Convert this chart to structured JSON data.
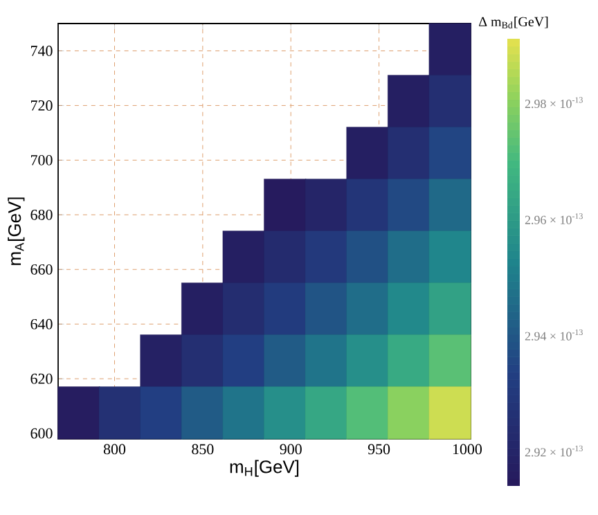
{
  "chart_data": {
    "type": "scatter",
    "xlabel": "m$_{H}$[GeV]",
    "ylabel": "m$_{A}$[GeV]",
    "clabel": "Δ m$_{Bd}$[GeV]",
    "x": [
      990.3,
      966.9,
      990.3,
      943.5,
      966.9,
      990.3,
      896.7,
      920.1,
      943.5,
      966.9,
      990.3,
      873.3,
      896.7,
      920.1,
      943.5,
      966.9,
      990.3,
      849.9,
      873.3,
      896.7,
      920.1,
      943.5,
      966.9,
      990.3,
      826.5,
      849.9,
      873.3,
      896.7,
      920.1,
      943.5,
      966.9,
      990.3,
      779.7,
      803.1,
      826.5,
      849.9,
      873.3,
      896.7,
      920.1,
      943.5,
      966.9,
      990.3
    ],
    "values": [
      740.5,
      721.5,
      721.5,
      702.5,
      702.5,
      702.5,
      683.5,
      683.5,
      683.5,
      683.5,
      683.5,
      664.5,
      664.5,
      664.5,
      664.5,
      664.5,
      664.5,
      645.5,
      645.5,
      645.5,
      645.5,
      645.5,
      645.5,
      645.5,
      626.5,
      626.5,
      626.5,
      626.5,
      626.5,
      626.5,
      626.5,
      626.5,
      607.5,
      607.5,
      607.5,
      607.5,
      607.5,
      607.5,
      607.5,
      607.5,
      607.5,
      607.5
    ],
    "cvalues": [
      2.917e-13,
      2.917e-13,
      2.925e-13,
      2.917e-13,
      2.925e-13,
      2.935e-13,
      2.915e-13,
      2.92e-13,
      2.928e-13,
      2.936e-13,
      2.945e-13,
      2.917e-13,
      2.923e-13,
      2.93e-13,
      2.938e-13,
      2.946e-13,
      2.953e-13,
      2.917e-13,
      2.924e-13,
      2.931e-13,
      2.939e-13,
      2.946e-13,
      2.954e-13,
      2.962e-13,
      2.918e-13,
      2.925e-13,
      2.933e-13,
      2.941e-13,
      2.948e-13,
      2.956e-13,
      2.965e-13,
      2.973e-13,
      2.916e-13,
      2.926e-13,
      2.933e-13,
      2.941e-13,
      2.948e-13,
      2.956e-13,
      2.964e-13,
      2.972e-13,
      2.98e-13,
      2.988e-13
    ],
    "marker": "square",
    "xlim": [
      768,
      1002
    ],
    "ylim": [
      598,
      750
    ],
    "xticks": [
      800,
      850,
      900,
      950,
      1000
    ],
    "yticks": [
      600,
      620,
      640,
      660,
      680,
      700,
      720,
      740
    ],
    "clim": [
      2.914e-13,
      2.991e-13
    ],
    "cticks": [
      {
        "value": 2.92e-13,
        "label": "2.92 × 10$^{-13}$"
      },
      {
        "value": 2.94e-13,
        "label": "2.94 × 10$^{-13}$"
      },
      {
        "value": 2.96e-13,
        "label": "2.96 × 10$^{-13}$"
      },
      {
        "value": 2.98e-13,
        "label": "2.98 × 10$^{-13}$"
      }
    ],
    "grid": true
  }
}
